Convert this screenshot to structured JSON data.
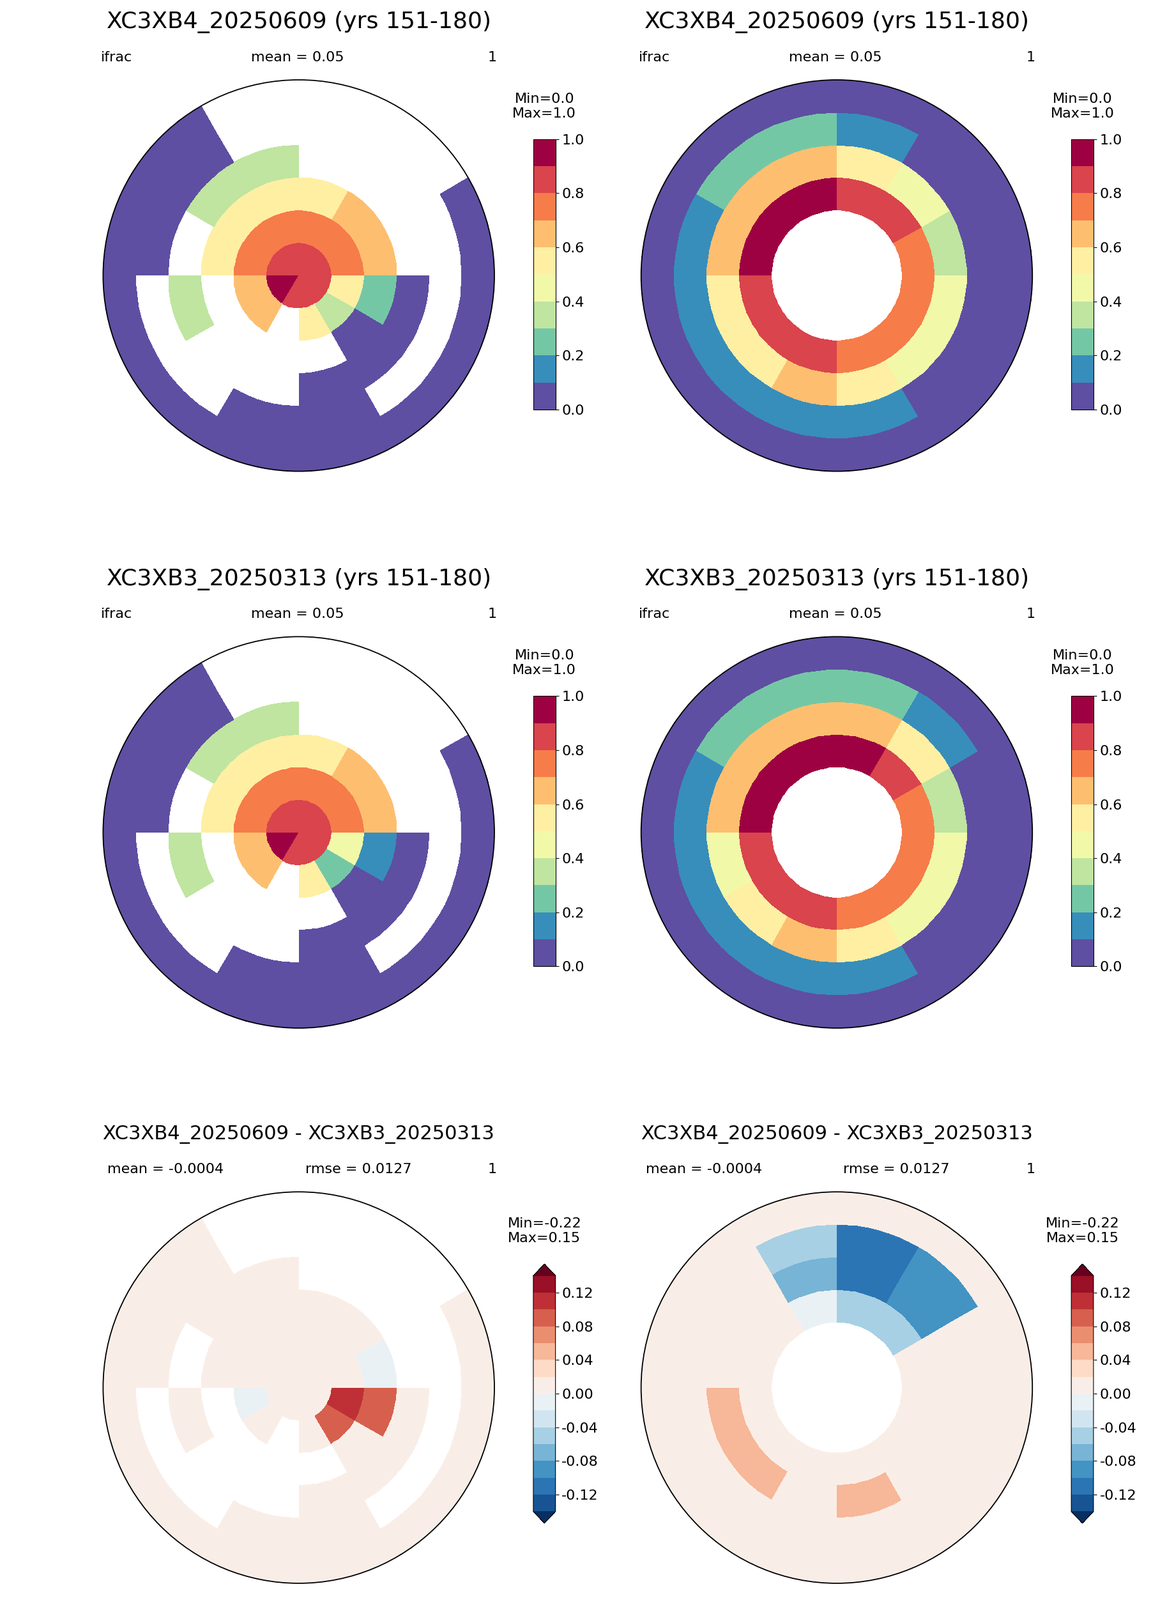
{
  "chart_data": [
    {
      "type": "map",
      "title": "XC3XB4_20250609 (yrs 151-180)",
      "texts": [
        "ifrac",
        "mean = 0.05",
        "1"
      ],
      "color": "Spectral_r",
      "colorbar": {
        "levels": [
          0.0,
          0.1,
          0.2,
          0.3,
          0.4,
          0.5,
          0.6,
          0.7,
          0.8,
          0.9,
          1.0
        ],
        "ticks": [
          0.0,
          0.2,
          0.4,
          0.6,
          0.8,
          1.0
        ],
        "min": {
          "value": 0.0,
          "label": "Min=0.0"
        },
        "max": {
          "value": 1.0,
          "label": "Max=1.0"
        }
      },
      "cells": [
        [
          0.85,
          0.75,
          0.6,
          null,
          null,
          0.0
        ],
        [
          0.85,
          0.7,
          0.6,
          null,
          null,
          null
        ],
        [
          0.85,
          0.7,
          0.55,
          null,
          null,
          null
        ],
        [
          0.85,
          0.7,
          0.5,
          0.3,
          null,
          null
        ],
        [
          0.85,
          0.7,
          0.5,
          0.3,
          0.0,
          0.0
        ],
        [
          0.85,
          0.75,
          0.55,
          null,
          0.0,
          0.0
        ],
        [
          0.9,
          0.6,
          null,
          0.35,
          null,
          0.0
        ],
        [
          0.9,
          0.65,
          null,
          null,
          null,
          0.0
        ],
        [
          0.85,
          null,
          null,
          null,
          0.0,
          0.0
        ],
        [
          0.85,
          0.5,
          null,
          0.0,
          0.0,
          0.0
        ],
        [
          0.8,
          0.3,
          0.0,
          0.0,
          null,
          0.0
        ],
        [
          0.85,
          0.5,
          0.2,
          0.0,
          null,
          0.0
        ]
      ]
    },
    {
      "type": "map",
      "title": "XC3XB4_20250609 (yrs 151-180)",
      "texts": [
        "ifrac",
        "mean = 0.05",
        "1"
      ],
      "color": "Spectral_r",
      "colorbar": {
        "levels": [
          0.0,
          0.1,
          0.2,
          0.3,
          0.4,
          0.5,
          0.6,
          0.7,
          0.8,
          0.9,
          1.0
        ],
        "ticks": [
          0.0,
          0.2,
          0.4,
          0.6,
          0.8,
          1.0
        ],
        "min": {
          "value": 0.0,
          "label": "Min=0.0"
        },
        "max": {
          "value": 1.0,
          "label": "Max=1.0"
        }
      },
      "cells": [
        [
          null,
          null,
          0.75,
          0.35,
          0.0,
          0.0
        ],
        [
          null,
          null,
          0.8,
          0.4,
          0.05,
          0.0
        ],
        [
          null,
          null,
          0.85,
          0.5,
          0.1,
          0.0
        ],
        [
          null,
          null,
          0.9,
          0.6,
          0.2,
          0.0
        ],
        [
          null,
          null,
          0.95,
          0.65,
          0.25,
          0.0
        ],
        [
          null,
          null,
          0.9,
          0.6,
          0.15,
          0.0
        ],
        [
          null,
          null,
          0.85,
          0.5,
          0.1,
          0.0
        ],
        [
          null,
          null,
          0.85,
          0.55,
          0.1,
          0.0
        ],
        [
          null,
          null,
          0.8,
          0.6,
          0.15,
          0.0
        ],
        [
          null,
          null,
          0.75,
          0.55,
          0.1,
          0.0
        ],
        [
          null,
          null,
          0.7,
          0.45,
          0.05,
          0.0
        ],
        [
          null,
          null,
          0.7,
          0.4,
          0.05,
          0.0
        ]
      ]
    },
    {
      "type": "map",
      "title": "XC3XB3_20250313 (yrs 151-180)",
      "texts": [
        "ifrac",
        "mean = 0.05",
        "1"
      ],
      "color": "Spectral_r",
      "colorbar": {
        "levels": [
          0.0,
          0.1,
          0.2,
          0.3,
          0.4,
          0.5,
          0.6,
          0.7,
          0.8,
          0.9,
          1.0
        ],
        "ticks": [
          0.0,
          0.2,
          0.4,
          0.6,
          0.8,
          1.0
        ],
        "min": {
          "value": 0.0,
          "label": "Min=0.0"
        },
        "max": {
          "value": 1.0,
          "label": "Max=1.0"
        }
      },
      "cells": [
        [
          0.85,
          0.75,
          0.62,
          null,
          null,
          0.0
        ],
        [
          0.85,
          0.7,
          0.6,
          null,
          null,
          null
        ],
        [
          0.85,
          0.7,
          0.55,
          null,
          null,
          null
        ],
        [
          0.85,
          0.7,
          0.5,
          0.3,
          null,
          null
        ],
        [
          0.85,
          0.7,
          0.5,
          0.3,
          0.0,
          0.0
        ],
        [
          0.85,
          0.75,
          0.55,
          null,
          0.0,
          0.0
        ],
        [
          0.9,
          0.62,
          null,
          0.35,
          null,
          0.0
        ],
        [
          0.9,
          0.65,
          null,
          null,
          null,
          0.0
        ],
        [
          0.85,
          null,
          null,
          null,
          0.0,
          0.0
        ],
        [
          0.85,
          0.5,
          null,
          0.0,
          0.0,
          0.0
        ],
        [
          0.8,
          0.22,
          0.0,
          0.0,
          null,
          0.0
        ],
        [
          0.85,
          0.4,
          0.12,
          0.0,
          null,
          0.0
        ]
      ]
    },
    {
      "type": "map",
      "title": "XC3XB3_20250313 (yrs 151-180)",
      "texts": [
        "ifrac",
        "mean = 0.05",
        "1"
      ],
      "color": "Spectral_r",
      "colorbar": {
        "levels": [
          0.0,
          0.1,
          0.2,
          0.3,
          0.4,
          0.5,
          0.6,
          0.7,
          0.8,
          0.9,
          1.0
        ],
        "ticks": [
          0.0,
          0.2,
          0.4,
          0.6,
          0.8,
          1.0
        ],
        "min": {
          "value": 0.0,
          "label": "Min=0.0"
        },
        "max": {
          "value": 1.0,
          "label": "Max=1.0"
        }
      },
      "cells": [
        [
          null,
          null,
          0.75,
          0.35,
          0.0,
          0.0
        ],
        [
          null,
          null,
          0.85,
          0.5,
          0.15,
          0.0
        ],
        [
          null,
          null,
          0.9,
          0.62,
          0.22,
          0.0
        ],
        [
          null,
          null,
          0.92,
          0.68,
          0.25,
          0.0
        ],
        [
          null,
          null,
          0.95,
          0.65,
          0.25,
          0.0
        ],
        [
          null,
          null,
          0.9,
          0.6,
          0.15,
          0.0
        ],
        [
          null,
          null,
          0.85,
          0.46,
          0.1,
          0.0
        ],
        [
          null,
          null,
          0.85,
          0.51,
          0.1,
          0.0
        ],
        [
          null,
          null,
          0.8,
          0.6,
          0.15,
          0.0
        ],
        [
          null,
          null,
          0.75,
          0.5,
          0.1,
          0.0
        ],
        [
          null,
          null,
          0.7,
          0.45,
          0.05,
          0.0
        ],
        [
          null,
          null,
          0.7,
          0.4,
          0.05,
          0.0
        ]
      ]
    },
    {
      "type": "difference",
      "title": "XC3XB4_20250609 - XC3XB3_20250313",
      "texts": [
        "mean = -0.0004",
        "rmse = 0.0127",
        "1"
      ],
      "color": "RdBu_r",
      "colorbar": {
        "levels": [
          -0.14,
          -0.12,
          -0.1,
          -0.08,
          -0.06,
          -0.04,
          -0.02,
          0.0,
          0.02,
          0.04,
          0.06,
          0.08,
          0.1,
          0.12,
          0.14
        ],
        "ticks": [
          -0.12,
          -0.08,
          -0.04,
          {
            "value": 0.0,
            "label": "0.00"
          },
          0.04,
          0.08,
          0.12
        ],
        "min": {
          "value": -0.22,
          "label": "Min=-0.22"
        },
        "max": {
          "value": 0.15,
          "label": "Max=0.15"
        }
      },
      "cells": [
        [
          0.0,
          0.0,
          -0.02,
          null,
          null,
          0.0
        ],
        [
          0.0,
          0.0,
          0.0,
          null,
          null,
          null
        ],
        [
          0.0,
          0.0,
          0.0,
          null,
          null,
          null
        ],
        [
          0.0,
          0.0,
          0.0,
          0.0,
          null,
          null
        ],
        [
          0.0,
          0.0,
          0.0,
          0.0,
          0.0,
          0.0
        ],
        [
          0.0,
          0.0,
          0.0,
          null,
          0.0,
          0.0
        ],
        [
          0.0,
          -0.02,
          null,
          0.0,
          null,
          0.0
        ],
        [
          0.0,
          0.0,
          null,
          null,
          null,
          0.0
        ],
        [
          0.0,
          null,
          null,
          null,
          0.0,
          0.0
        ],
        [
          0.0,
          0.0,
          null,
          0.0,
          0.0,
          0.0
        ],
        [
          0.0,
          0.08,
          0.0,
          0.0,
          null,
          0.0
        ],
        [
          0.0,
          0.1,
          0.08,
          0.0,
          null,
          0.0
        ]
      ]
    },
    {
      "type": "difference",
      "title": "XC3XB4_20250609 - XC3XB3_20250313",
      "texts": [
        "mean = -0.0004",
        "rmse = 0.0127",
        "1"
      ],
      "color": "RdBu_r",
      "colorbar": {
        "levels": [
          -0.14,
          -0.12,
          -0.1,
          -0.08,
          -0.06,
          -0.04,
          -0.02,
          0.0,
          0.02,
          0.04,
          0.06,
          0.08,
          0.1,
          0.12,
          0.14
        ],
        "ticks": [
          -0.12,
          -0.08,
          -0.04,
          {
            "value": 0.0,
            "label": "0.00"
          },
          0.04,
          0.08,
          0.12
        ],
        "min": {
          "value": -0.22,
          "label": "Min=-0.22"
        },
        "max": {
          "value": 0.15,
          "label": "Max=0.15"
        }
      },
      "cells": [
        [
          null,
          null,
          0.0,
          0.0,
          0.0,
          0.0
        ],
        [
          null,
          null,
          -0.05,
          -0.1,
          -0.1,
          0.0
        ],
        [
          null,
          null,
          -0.05,
          -0.12,
          -0.12,
          0.0
        ],
        [
          null,
          null,
          -0.02,
          -0.08,
          -0.05,
          0.0
        ],
        [
          null,
          null,
          0.0,
          0.0,
          0.0,
          0.0
        ],
        [
          null,
          null,
          0.0,
          0.0,
          0.0,
          0.0
        ],
        [
          null,
          null,
          0.0,
          0.04,
          0.0,
          0.0
        ],
        [
          null,
          null,
          0.0,
          0.04,
          0.0,
          0.0
        ],
        [
          null,
          null,
          0.0,
          0.0,
          0.0,
          0.0
        ],
        [
          null,
          null,
          0.0,
          0.05,
          0.0,
          0.0
        ],
        [
          null,
          null,
          0.0,
          0.0,
          0.0,
          0.0
        ],
        [
          null,
          null,
          0.0,
          0.0,
          0.0,
          0.0
        ]
      ]
    }
  ]
}
